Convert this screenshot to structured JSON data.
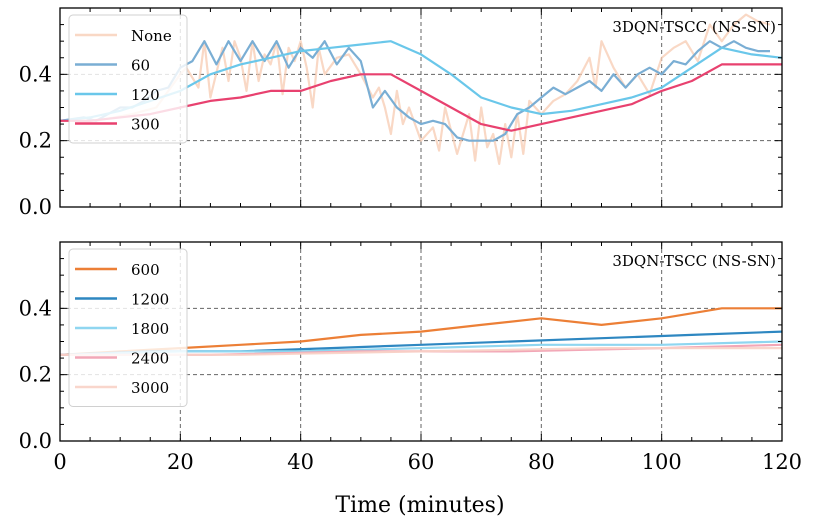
{
  "xlabel": "Time (minutes)",
  "x_ticks": [
    "0",
    "20",
    "40",
    "60",
    "80",
    "100",
    "120"
  ],
  "y_ticks": [
    "0.0",
    "0.2",
    "0.4"
  ],
  "chart_data": [
    {
      "type": "line",
      "annotation": "3DQN-TSCC (NS-SN)",
      "xlim": [
        0,
        120
      ],
      "ylim": [
        0,
        0.6
      ],
      "grid": true,
      "legend_position": "top-left",
      "series": [
        {
          "name": "None",
          "color": "#f7cbb2",
          "opacity": 0.75,
          "x": [
            0,
            6,
            12,
            16,
            20,
            21,
            23,
            24,
            25,
            27,
            28,
            29,
            30,
            31,
            32,
            33,
            34,
            35,
            36,
            37,
            38,
            39,
            40,
            41,
            42,
            43,
            44,
            46,
            48,
            50,
            52,
            53,
            54,
            55,
            56,
            57,
            58,
            60,
            62,
            63,
            64,
            66,
            68,
            69,
            70,
            71,
            72,
            73,
            74,
            75,
            76,
            77,
            78,
            80,
            82,
            84,
            86,
            88,
            89,
            90,
            92,
            94,
            96,
            98,
            100,
            102,
            104,
            106,
            108,
            110,
            112,
            114,
            116,
            118
          ],
          "y": [
            0.26,
            0.26,
            0.28,
            0.3,
            0.4,
            0.42,
            0.36,
            0.5,
            0.33,
            0.48,
            0.38,
            0.5,
            0.45,
            0.35,
            0.5,
            0.38,
            0.46,
            0.43,
            0.5,
            0.34,
            0.48,
            0.44,
            0.5,
            0.42,
            0.3,
            0.48,
            0.4,
            0.45,
            0.46,
            0.4,
            0.33,
            0.36,
            0.3,
            0.22,
            0.35,
            0.25,
            0.3,
            0.2,
            0.24,
            0.17,
            0.3,
            0.16,
            0.28,
            0.14,
            0.3,
            0.18,
            0.22,
            0.13,
            0.25,
            0.15,
            0.28,
            0.16,
            0.32,
            0.28,
            0.32,
            0.34,
            0.38,
            0.45,
            0.36,
            0.5,
            0.42,
            0.36,
            0.4,
            0.34,
            0.45,
            0.48,
            0.5,
            0.44,
            0.55,
            0.5,
            0.55,
            0.58,
            0.56,
            0.55
          ]
        },
        {
          "name": "60",
          "color": "#7aaed4",
          "opacity": 1,
          "x": [
            0,
            4,
            6,
            8,
            10,
            12,
            14,
            16,
            18,
            20,
            22,
            24,
            26,
            28,
            30,
            32,
            34,
            36,
            38,
            40,
            42,
            44,
            46,
            48,
            50,
            52,
            54,
            56,
            58,
            60,
            62,
            64,
            66,
            68,
            70,
            72,
            74,
            76,
            78,
            80,
            82,
            84,
            86,
            88,
            90,
            92,
            94,
            96,
            98,
            100,
            102,
            104,
            106,
            108,
            110,
            112,
            114,
            116,
            118
          ],
          "y": [
            0.26,
            0.27,
            0.26,
            0.28,
            0.3,
            0.3,
            0.32,
            0.35,
            0.36,
            0.42,
            0.44,
            0.5,
            0.43,
            0.5,
            0.44,
            0.5,
            0.44,
            0.5,
            0.42,
            0.48,
            0.45,
            0.5,
            0.43,
            0.48,
            0.44,
            0.3,
            0.35,
            0.3,
            0.27,
            0.25,
            0.26,
            0.25,
            0.21,
            0.2,
            0.2,
            0.2,
            0.22,
            0.28,
            0.3,
            0.33,
            0.36,
            0.34,
            0.36,
            0.38,
            0.35,
            0.4,
            0.36,
            0.4,
            0.42,
            0.4,
            0.44,
            0.43,
            0.47,
            0.5,
            0.48,
            0.5,
            0.48,
            0.47,
            0.47
          ]
        },
        {
          "name": "120",
          "color": "#6ac7ea",
          "opacity": 1,
          "x": [
            0,
            5,
            10,
            15,
            20,
            25,
            30,
            35,
            40,
            45,
            50,
            55,
            60,
            65,
            70,
            75,
            80,
            85,
            90,
            95,
            100,
            105,
            110,
            115,
            120
          ],
          "y": [
            0.26,
            0.27,
            0.29,
            0.32,
            0.35,
            0.4,
            0.43,
            0.45,
            0.47,
            0.48,
            0.49,
            0.5,
            0.46,
            0.4,
            0.33,
            0.3,
            0.28,
            0.29,
            0.31,
            0.33,
            0.36,
            0.42,
            0.48,
            0.46,
            0.45
          ]
        },
        {
          "name": "300",
          "color": "#e8416f",
          "opacity": 1,
          "x": [
            0,
            5,
            10,
            15,
            20,
            25,
            30,
            35,
            40,
            45,
            50,
            55,
            60,
            65,
            70,
            75,
            80,
            85,
            90,
            95,
            100,
            105,
            110,
            115,
            120
          ],
          "y": [
            0.26,
            0.26,
            0.27,
            0.28,
            0.3,
            0.32,
            0.33,
            0.35,
            0.35,
            0.38,
            0.4,
            0.4,
            0.35,
            0.3,
            0.25,
            0.23,
            0.25,
            0.27,
            0.29,
            0.31,
            0.35,
            0.38,
            0.43,
            0.43,
            0.43
          ]
        }
      ]
    },
    {
      "type": "line",
      "annotation": "3DQN-TSCC (NS-SN)",
      "xlim": [
        0,
        120
      ],
      "ylim": [
        0,
        0.6
      ],
      "grid": true,
      "legend_position": "top-left",
      "series": [
        {
          "name": "600",
          "color": "#ec7f36",
          "opacity": 1,
          "x": [
            0,
            10,
            20,
            30,
            40,
            50,
            60,
            70,
            80,
            90,
            100,
            110,
            120
          ],
          "y": [
            0.26,
            0.27,
            0.28,
            0.29,
            0.3,
            0.32,
            0.33,
            0.35,
            0.37,
            0.35,
            0.37,
            0.4,
            0.4
          ]
        },
        {
          "name": "1200",
          "color": "#2e87c1",
          "opacity": 1,
          "x": [
            0,
            15,
            30,
            45,
            60,
            75,
            90,
            105,
            120
          ],
          "y": [
            0.26,
            0.27,
            0.27,
            0.28,
            0.29,
            0.3,
            0.31,
            0.32,
            0.33
          ]
        },
        {
          "name": "1800",
          "color": "#8fd6f0",
          "opacity": 1,
          "x": [
            0,
            20,
            40,
            60,
            80,
            100,
            120
          ],
          "y": [
            0.26,
            0.27,
            0.27,
            0.28,
            0.29,
            0.29,
            0.3
          ]
        },
        {
          "name": "2400",
          "color": "#f2a7b7",
          "opacity": 1,
          "x": [
            0,
            25,
            50,
            75,
            100,
            120
          ],
          "y": [
            0.26,
            0.26,
            0.27,
            0.27,
            0.28,
            0.29
          ]
        },
        {
          "name": "3000",
          "color": "#f8d1c6",
          "opacity": 0.9,
          "x": [
            0,
            30,
            60,
            90,
            120
          ],
          "y": [
            0.26,
            0.26,
            0.27,
            0.28,
            0.28
          ]
        }
      ]
    }
  ]
}
